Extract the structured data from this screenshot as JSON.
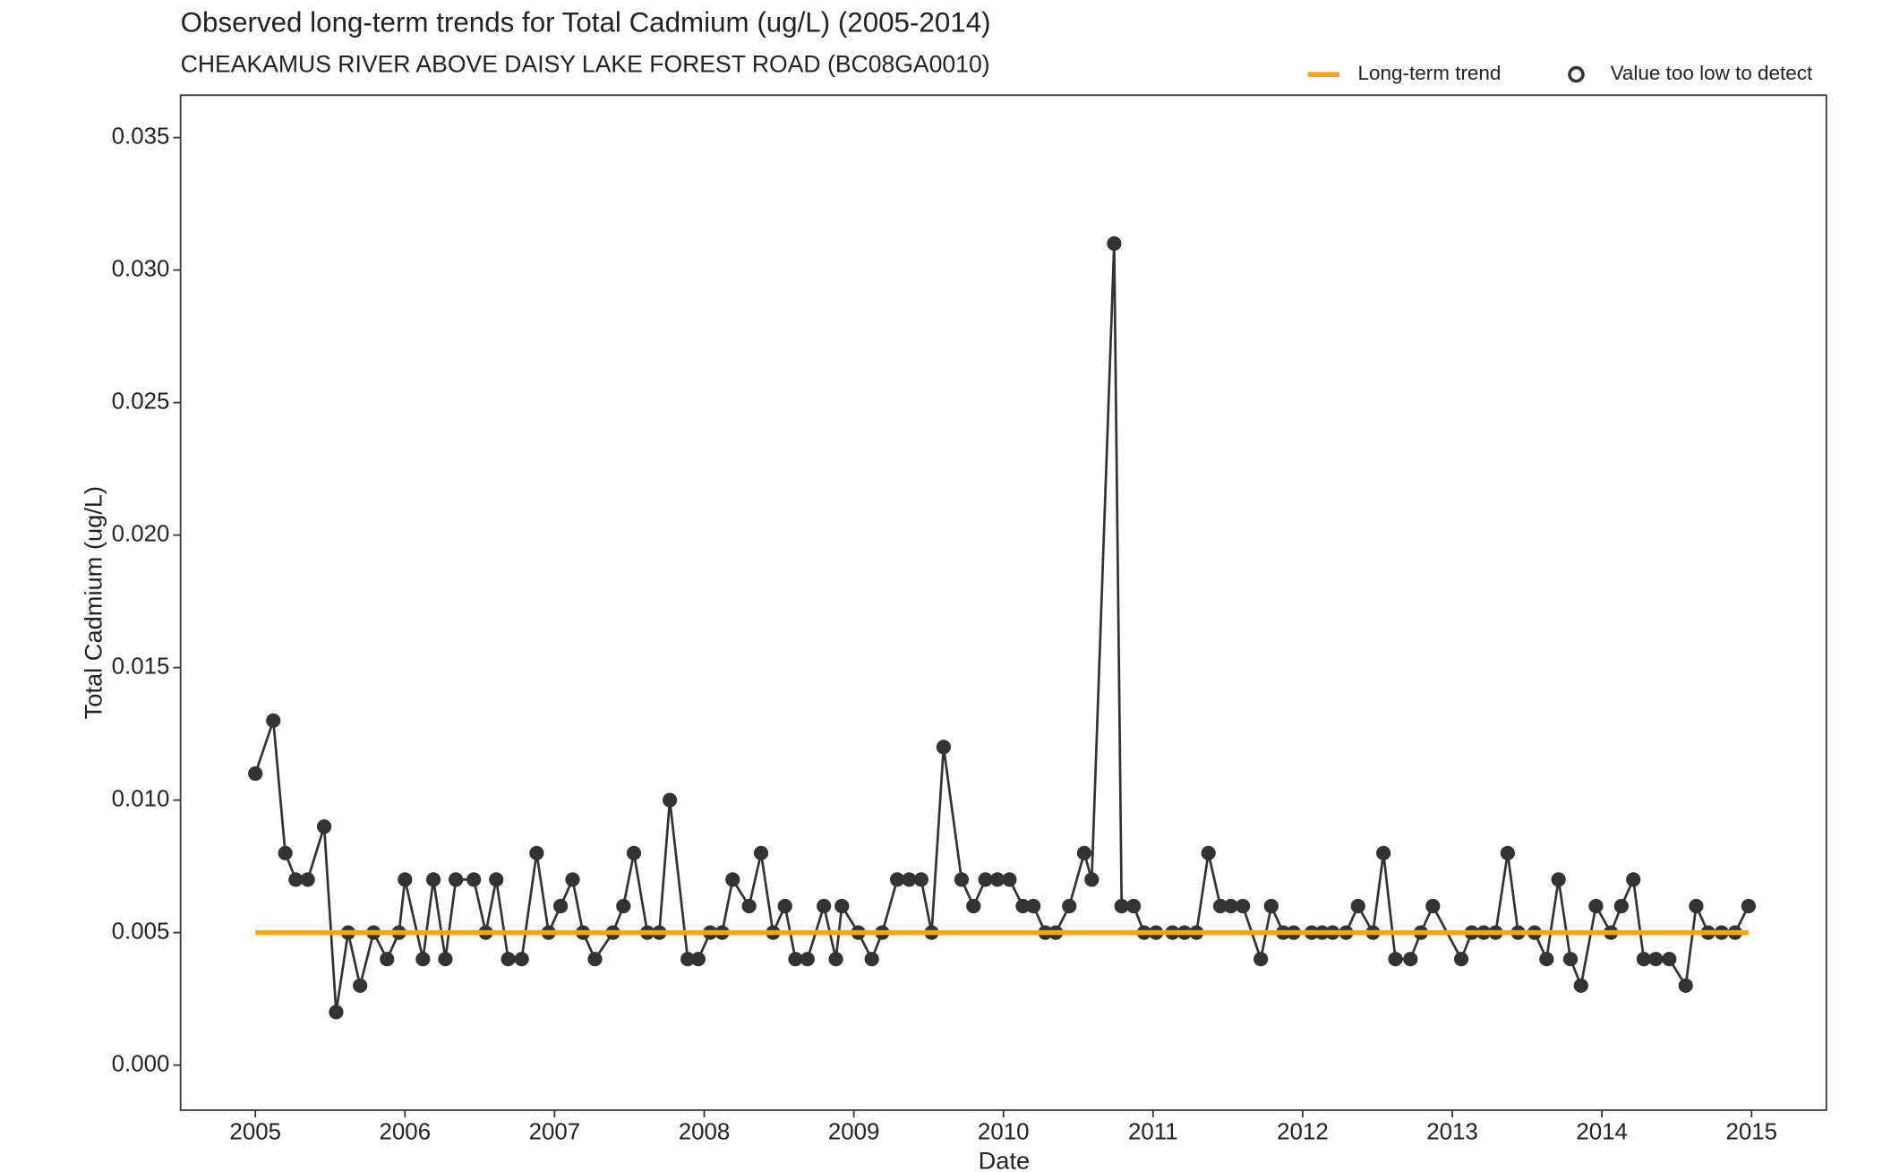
{
  "chart_data": {
    "type": "line",
    "title": "Observed long-term trends for Total Cadmium (ug/L) (2005-2014)",
    "subtitle": "CHEAKAMUS RIVER ABOVE DAISY LAKE FOREST ROAD (BC08GA0010)",
    "x_label": "Date",
    "y_label": "Total Cadmium (ug/L)",
    "xlim": [
      2004.5,
      2015.5
    ],
    "xticks": [
      2005,
      2006,
      2007,
      2008,
      2009,
      2010,
      2011,
      2012,
      2013,
      2014,
      2015
    ],
    "ylim": [
      -0.0017,
      0.0366
    ],
    "yticks": [
      {
        "value": 0,
        "label": "0.000"
      },
      {
        "value": 0.005,
        "label": "0.005"
      },
      {
        "value": 0.01,
        "label": "0.010"
      },
      {
        "value": 0.015,
        "label": "0.015"
      },
      {
        "value": 0.02,
        "label": "0.020"
      },
      {
        "value": 0.025,
        "label": "0.025"
      },
      {
        "value": 0.03,
        "label": "0.030"
      },
      {
        "value": 0.035,
        "label": "0.035"
      }
    ],
    "grid": false,
    "legend_position": "top-right",
    "series": [
      {
        "name": "Observed",
        "color": "#333333",
        "markers": true,
        "in_legend": false,
        "x": [
          2005.0,
          2005.12,
          2005.2,
          2005.27,
          2005.35,
          2005.46,
          2005.54,
          2005.62,
          2005.7,
          2005.79,
          2005.88,
          2005.96,
          2006.0,
          2006.12,
          2006.19,
          2006.27,
          2006.34,
          2006.46,
          2006.54,
          2006.61,
          2006.69,
          2006.78,
          2006.88,
          2006.96,
          2007.04,
          2007.12,
          2007.19,
          2007.27,
          2007.39,
          2007.46,
          2007.53,
          2007.62,
          2007.7,
          2007.77,
          2007.89,
          2007.96,
          2008.04,
          2008.12,
          2008.19,
          2008.3,
          2008.38,
          2008.46,
          2008.54,
          2008.61,
          2008.69,
          2008.8,
          2008.88,
          2008.92,
          2009.03,
          2009.12,
          2009.19,
          2009.29,
          2009.37,
          2009.45,
          2009.52,
          2009.6,
          2009.72,
          2009.8,
          2009.88,
          2009.96,
          2010.04,
          2010.13,
          2010.2,
          2010.28,
          2010.35,
          2010.44,
          2010.54,
          2010.59,
          2010.74,
          2010.79,
          2010.87,
          2010.94,
          2011.02,
          2011.13,
          2011.21,
          2011.29,
          2011.37,
          2011.45,
          2011.52,
          2011.6,
          2011.72,
          2011.79,
          2011.87,
          2011.94,
          2012.06,
          2012.13,
          2012.2,
          2012.29,
          2012.37,
          2012.47,
          2012.54,
          2012.62,
          2012.72,
          2012.79,
          2012.87,
          2013.06,
          2013.13,
          2013.21,
          2013.29,
          2013.37,
          2013.44,
          2013.55,
          2013.63,
          2013.71,
          2013.79,
          2013.86,
          2013.96,
          2014.06,
          2014.13,
          2014.21,
          2014.28,
          2014.36,
          2014.45,
          2014.56,
          2014.63,
          2014.71,
          2014.8,
          2014.89,
          2014.98
        ],
        "values": [
          0.011,
          0.013,
          0.008,
          0.007,
          0.007,
          0.009,
          0.002,
          0.005,
          0.003,
          0.005,
          0.004,
          0.005,
          0.007,
          0.004,
          0.007,
          0.004,
          0.007,
          0.007,
          0.005,
          0.007,
          0.004,
          0.004,
          0.008,
          0.005,
          0.006,
          0.007,
          0.005,
          0.004,
          0.005,
          0.006,
          0.008,
          0.005,
          0.005,
          0.01,
          0.004,
          0.004,
          0.005,
          0.005,
          0.007,
          0.006,
          0.008,
          0.005,
          0.006,
          0.004,
          0.004,
          0.006,
          0.004,
          0.006,
          0.005,
          0.004,
          0.005,
          0.007,
          0.007,
          0.007,
          0.005,
          0.012,
          0.007,
          0.006,
          0.007,
          0.007,
          0.007,
          0.006,
          0.006,
          0.005,
          0.005,
          0.006,
          0.008,
          0.007,
          0.031,
          0.006,
          0.006,
          0.005,
          0.005,
          0.005,
          0.005,
          0.005,
          0.008,
          0.006,
          0.006,
          0.006,
          0.004,
          0.006,
          0.005,
          0.005,
          0.005,
          0.005,
          0.005,
          0.005,
          0.006,
          0.005,
          0.008,
          0.004,
          0.004,
          0.005,
          0.006,
          0.004,
          0.005,
          0.005,
          0.005,
          0.008,
          0.005,
          0.005,
          0.004,
          0.007,
          0.004,
          0.003,
          0.006,
          0.005,
          0.006,
          0.007,
          0.004,
          0.004,
          0.004,
          0.003,
          0.006,
          0.005,
          0.005,
          0.005,
          0.006
        ]
      },
      {
        "name": "Long-term trend",
        "color": "#FFA500",
        "markers": false,
        "in_legend": true,
        "x": [
          2005.0,
          2014.98
        ],
        "values": [
          0.005,
          0.005
        ]
      },
      {
        "name": "Value too low to detect",
        "color": "#333333",
        "markers": "open",
        "in_legend": true,
        "x": [],
        "values": []
      }
    ]
  }
}
